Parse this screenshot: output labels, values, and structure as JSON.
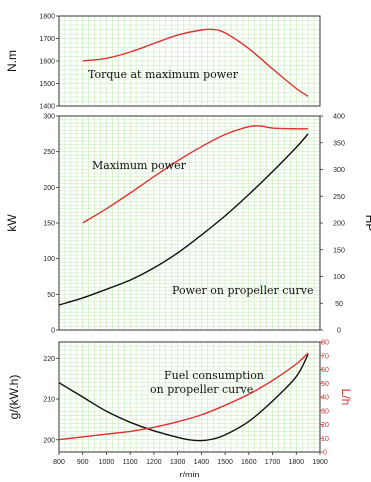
{
  "chart_data": [
    {
      "type": "line",
      "ylabel": "N.m",
      "xlim": [
        800,
        1900
      ],
      "ylim": [
        1400,
        1800
      ],
      "yticks": [
        1400,
        1500,
        1600,
        1700,
        1800
      ],
      "grid": true,
      "annotations": [
        "Torque at maximum power"
      ],
      "series": [
        {
          "color": "#e03030",
          "x": [
            900,
            1000,
            1100,
            1200,
            1300,
            1400,
            1450,
            1500,
            1600,
            1700,
            1800,
            1850
          ],
          "values": [
            1600,
            1612,
            1640,
            1678,
            1715,
            1738,
            1740,
            1725,
            1655,
            1565,
            1478,
            1443
          ]
        }
      ]
    },
    {
      "type": "line",
      "ylabel": "kW",
      "y2label": "HP",
      "xlim": [
        800,
        1900
      ],
      "ylim": [
        0,
        300
      ],
      "yticks": [
        0,
        50,
        100,
        150,
        200,
        250,
        300
      ],
      "y2lim": [
        0,
        400
      ],
      "y2ticks": [
        0,
        50,
        100,
        150,
        200,
        250,
        300,
        350,
        400
      ],
      "grid": true,
      "annotations": [
        "Maximum power",
        "Power on propeller curve"
      ],
      "series": [
        {
          "color": "#e03030",
          "x": [
            900,
            1000,
            1100,
            1200,
            1300,
            1400,
            1500,
            1600,
            1650,
            1700,
            1800,
            1850
          ],
          "values": [
            150,
            170,
            192,
            215,
            237,
            257,
            274,
            285,
            286,
            283,
            282,
            282
          ]
        },
        {
          "color": "#111111",
          "x": [
            800,
            900,
            1000,
            1100,
            1200,
            1300,
            1400,
            1500,
            1600,
            1700,
            1800,
            1850
          ],
          "values": [
            35,
            45,
            57,
            70,
            87,
            108,
            133,
            160,
            190,
            222,
            256,
            275
          ]
        }
      ]
    },
    {
      "type": "line",
      "ylabel": "g/(kW.h)",
      "y2label": "L/h",
      "xlabel": "r/min",
      "xlim": [
        800,
        1900
      ],
      "xticks": [
        800,
        900,
        1000,
        1100,
        1200,
        1300,
        1400,
        1500,
        1600,
        1700,
        1800,
        1900
      ],
      "ylim": [
        197,
        224
      ],
      "yticks": [
        200,
        210,
        220
      ],
      "y2lim": [
        0,
        80
      ],
      "y2ticks": [
        0,
        10,
        20,
        30,
        40,
        50,
        60,
        70,
        80
      ],
      "grid": true,
      "annotations": [
        "Fuel consumption",
        "on propeller curve"
      ],
      "series": [
        {
          "color": "#111111",
          "axis": "left",
          "x": [
            800,
            900,
            1000,
            1100,
            1200,
            1300,
            1350,
            1400,
            1450,
            1500,
            1600,
            1700,
            1800,
            1850
          ],
          "values": [
            214,
            210.5,
            207,
            204.3,
            202.2,
            200.6,
            200,
            199.8,
            200.2,
            201.2,
            204.5,
            209.5,
            215.5,
            221
          ]
        },
        {
          "color": "#e03030",
          "axis": "right",
          "x": [
            800,
            900,
            1000,
            1100,
            1200,
            1300,
            1400,
            1500,
            1600,
            1700,
            1800,
            1850
          ],
          "values": [
            9,
            11,
            13,
            15,
            18,
            22,
            27,
            34,
            42,
            52,
            64,
            72
          ]
        }
      ]
    }
  ]
}
